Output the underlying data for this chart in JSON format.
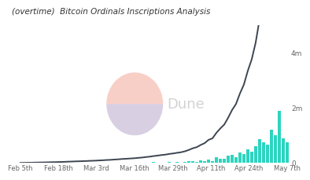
{
  "title": "Bitcoin Ordinals Inscriptions Analysis",
  "title_prefix": "(overtime)",
  "bg_color": "#ffffff",
  "bar_color": "#2dd4bf",
  "line_color": "#3d4551",
  "ylabel_right": [
    "0",
    "2m",
    "4m"
  ],
  "yticks_right": [
    0,
    2000000,
    4000000
  ],
  "xlabels": [
    "Feb 5th",
    "Feb 18th",
    "Mar 3rd",
    "Mar 16th",
    "Mar 29th",
    "Apr 11th",
    "Apr 24th",
    "May 7th"
  ],
  "watermark_color_top": "#f4a99a",
  "watermark_color_bottom": "#b8a9cc",
  "bar_heights": [
    2000,
    1500,
    3000,
    2000,
    4000,
    2500,
    3500,
    3000,
    4500,
    2000,
    5000,
    3500,
    7000,
    5000,
    6000,
    4000,
    5500,
    5000,
    7000,
    4500,
    8000,
    7000,
    9000,
    6000,
    11000,
    8000,
    13000,
    7000,
    10000,
    8500,
    14000,
    12000,
    18000,
    14000,
    22000,
    17000,
    20000,
    15000,
    25000,
    18000,
    24000,
    20000,
    35000,
    50000,
    60000,
    40000,
    80000,
    65000,
    120000,
    55000,
    200000,
    160000,
    140000,
    250000,
    280000,
    220000,
    380000,
    320000,
    500000,
    420000,
    600000,
    850000,
    750000,
    650000,
    1200000,
    1000000,
    1900000,
    900000,
    750000
  ],
  "ylim_bars": 5000000,
  "n_total": 69
}
